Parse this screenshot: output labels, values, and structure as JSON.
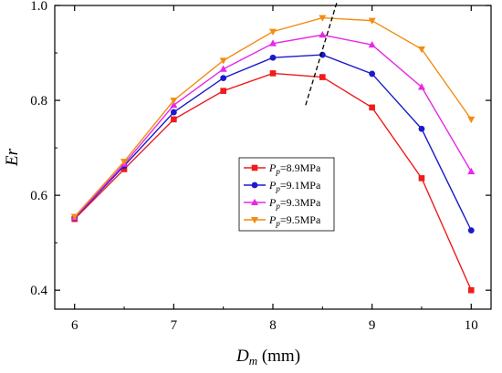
{
  "chart_data": {
    "type": "line",
    "x": [
      6,
      6.5,
      7,
      7.5,
      8,
      8.5,
      9,
      9.5,
      10
    ],
    "xlim": [
      5.8,
      10.2
    ],
    "ylim": [
      0.36,
      1.0
    ],
    "xticks": [
      6,
      7,
      8,
      9,
      10
    ],
    "yticks": [
      0.4,
      0.6,
      0.8,
      1.0
    ],
    "xtick_labels": [
      "6",
      "7",
      "8",
      "9",
      "10"
    ],
    "ytick_labels": [
      "0.4",
      "0.6",
      "0.8",
      "1.0"
    ],
    "xlabel": {
      "main": "D",
      "sub": "m",
      "unit": " (mm)"
    },
    "ylabel": "Er",
    "legend_position": "center-right",
    "grid": false,
    "series": [
      {
        "name": "=8.9MPa",
        "symbol": "P",
        "sub": "p",
        "color": "#ee1c1c",
        "marker": "square",
        "values": [
          0.55,
          0.655,
          0.76,
          0.82,
          0.857,
          0.849,
          0.785,
          0.636,
          0.4
        ]
      },
      {
        "name": "=9.1MPa",
        "symbol": "P",
        "sub": "p",
        "color": "#1a1acc",
        "marker": "circle",
        "values": [
          0.552,
          0.662,
          0.775,
          0.847,
          0.89,
          0.896,
          0.856,
          0.74,
          0.526
        ]
      },
      {
        "name": "=9.3MPa",
        "symbol": "P",
        "sub": "p",
        "color": "#e629e6",
        "marker": "triangle-up",
        "values": [
          0.553,
          0.666,
          0.79,
          0.866,
          0.92,
          0.938,
          0.917,
          0.828,
          0.65
        ]
      },
      {
        "name": "=9.5MPa",
        "symbol": "P",
        "sub": "p",
        "color": "#f28c12",
        "marker": "triangle-down",
        "values": [
          0.555,
          0.671,
          0.8,
          0.884,
          0.945,
          0.974,
          0.968,
          0.908,
          0.76
        ]
      }
    ],
    "annotations": [
      {
        "type": "dashed-line",
        "from": [
          8.33,
          0.79
        ],
        "to": [
          8.65,
          1.01
        ],
        "color": "#000000"
      }
    ]
  }
}
